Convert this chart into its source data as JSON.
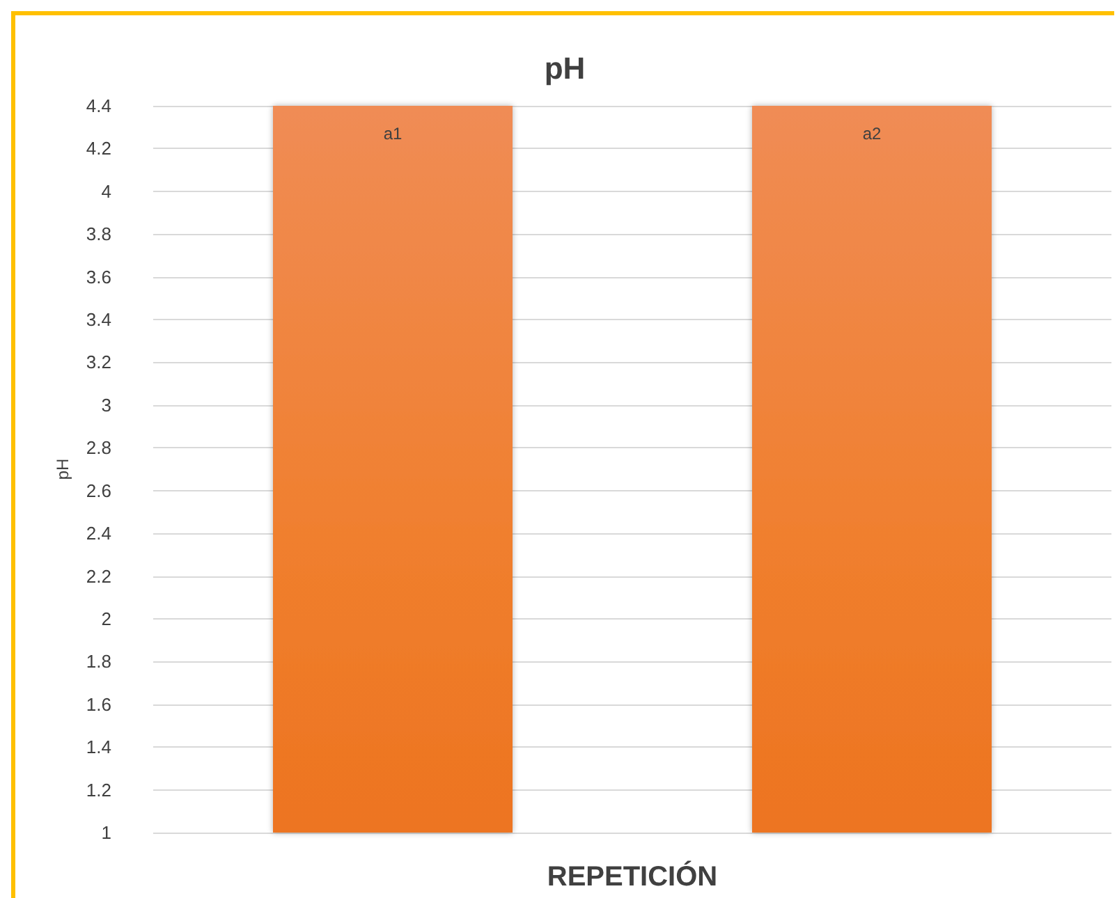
{
  "chart_data": {
    "type": "bar",
    "title": "pH",
    "xlabel": "REPETICIÓN",
    "ylabel": "pH",
    "categories": [
      null,
      null
    ],
    "values": [
      4.4,
      4.4
    ],
    "value_labels": [
      "a1",
      "a2"
    ],
    "color": "#f07f2e",
    "ylim": [
      1,
      4.4
    ],
    "yticks": [
      1,
      1.2,
      1.4,
      1.6,
      1.8,
      2,
      2.2,
      2.4,
      2.6,
      2.8,
      3,
      3.2,
      3.4,
      3.6,
      3.8,
      4,
      4.2,
      4.4
    ],
    "grid": "y"
  }
}
